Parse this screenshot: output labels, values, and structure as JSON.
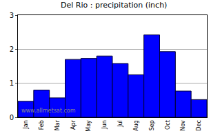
{
  "chart_data": {
    "type": "bar",
    "title": "Del Rio : precipitation (inch)",
    "categories": [
      "Jan",
      "Feb",
      "Mar",
      "Apr",
      "May",
      "Jun",
      "Jul",
      "Aug",
      "Sep",
      "Oct",
      "Nov",
      "Dec"
    ],
    "values": [
      0.47,
      0.8,
      0.57,
      1.7,
      1.73,
      1.8,
      1.58,
      1.25,
      2.42,
      1.93,
      0.77,
      0.52
    ],
    "color": "#0000ff",
    "ylim": [
      0,
      3
    ],
    "yticks": [
      0,
      1,
      2,
      3
    ],
    "grid": true,
    "annotations": [
      {
        "text": "www.allmetsat.com"
      }
    ]
  }
}
